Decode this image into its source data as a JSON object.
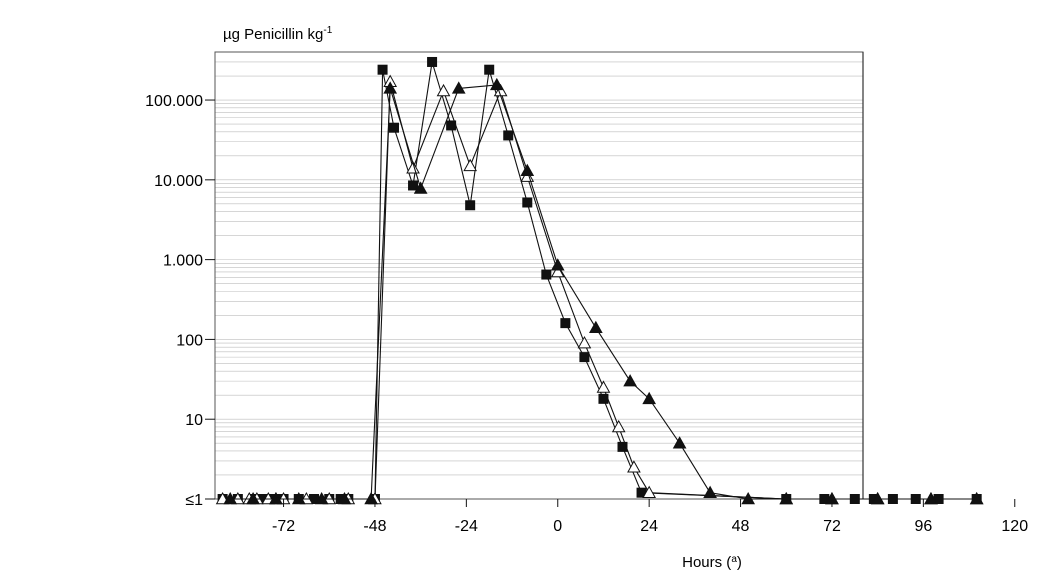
{
  "chart_data": {
    "type": "line",
    "ylabel": "µg Penicillin kg",
    "ylabel_superscript": "-1",
    "xlabel": "Hours (",
    "xlabel_superscript": "a",
    "xlabel_tail": ")",
    "y_scale": "log",
    "ylim": [
      1,
      400000
    ],
    "xlim": [
      -90,
      124
    ],
    "grid": "horizontal",
    "y_ticks": [
      {
        "value": 100000,
        "label": "100.000"
      },
      {
        "value": 10000,
        "label": "10.000"
      },
      {
        "value": 1000,
        "label": "1.000"
      },
      {
        "value": 100,
        "label": "100"
      },
      {
        "value": 10,
        "label": "10"
      },
      {
        "value": 1,
        "label": "≤1"
      }
    ],
    "x_ticks": [
      {
        "value": -72,
        "label": "-72"
      },
      {
        "value": -48,
        "label": "-48"
      },
      {
        "value": -24,
        "label": "-24"
      },
      {
        "value": 0,
        "label": "0"
      },
      {
        "value": 24,
        "label": "24"
      },
      {
        "value": 48,
        "label": "48"
      },
      {
        "value": 72,
        "label": "72"
      },
      {
        "value": 96,
        "label": "96"
      },
      {
        "value": 120,
        "label": "120"
      }
    ],
    "series": [
      {
        "marker": "square-filled",
        "points": [
          {
            "x": -88,
            "y": 1
          },
          {
            "x": -84,
            "y": 1
          },
          {
            "x": -80,
            "y": 1
          },
          {
            "x": -78,
            "y": 1
          },
          {
            "x": -76,
            "y": 1
          },
          {
            "x": -74,
            "y": 1
          },
          {
            "x": -72,
            "y": 1
          },
          {
            "x": -68,
            "y": 1
          },
          {
            "x": -64,
            "y": 1
          },
          {
            "x": -60,
            "y": 1
          },
          {
            "x": -57,
            "y": 1
          },
          {
            "x": -55,
            "y": 1
          },
          {
            "x": -48,
            "y": 1
          },
          {
            "x": -46,
            "y": 240000
          },
          {
            "x": -43,
            "y": 45000
          },
          {
            "x": -38,
            "y": 8500
          },
          {
            "x": -33,
            "y": 300000
          },
          {
            "x": -28,
            "y": 48000
          },
          {
            "x": -23,
            "y": 4800
          },
          {
            "x": -18,
            "y": 240000
          },
          {
            "x": -13,
            "y": 36000
          },
          {
            "x": -8,
            "y": 5200
          },
          {
            "x": -3,
            "y": 650
          },
          {
            "x": 2,
            "y": 160
          },
          {
            "x": 7,
            "y": 60
          },
          {
            "x": 12,
            "y": 18
          },
          {
            "x": 17,
            "y": 4.5
          },
          {
            "x": 22,
            "y": 1.2
          },
          {
            "x": 60,
            "y": 1
          },
          {
            "x": 70,
            "y": 1
          },
          {
            "x": 78,
            "y": 1
          },
          {
            "x": 83,
            "y": 1
          },
          {
            "x": 88,
            "y": 1
          },
          {
            "x": 94,
            "y": 1
          },
          {
            "x": 100,
            "y": 1
          },
          {
            "x": 110,
            "y": 1
          }
        ]
      },
      {
        "marker": "triangle-open",
        "points": [
          {
            "x": -88,
            "y": 1
          },
          {
            "x": -84,
            "y": 1
          },
          {
            "x": -81,
            "y": 1
          },
          {
            "x": -79,
            "y": 1
          },
          {
            "x": -76,
            "y": 1
          },
          {
            "x": -74,
            "y": 1
          },
          {
            "x": -72,
            "y": 1
          },
          {
            "x": -66,
            "y": 1
          },
          {
            "x": -60,
            "y": 1
          },
          {
            "x": -55,
            "y": 1
          },
          {
            "x": -48,
            "y": 1
          },
          {
            "x": -44,
            "y": 170000
          },
          {
            "x": -38,
            "y": 14000
          },
          {
            "x": -30,
            "y": 130000
          },
          {
            "x": -23,
            "y": 15000
          },
          {
            "x": -15,
            "y": 130000
          },
          {
            "x": -8,
            "y": 11000
          },
          {
            "x": 0,
            "y": 700
          },
          {
            "x": 7,
            "y": 90
          },
          {
            "x": 12,
            "y": 25
          },
          {
            "x": 16,
            "y": 8
          },
          {
            "x": 20,
            "y": 2.5
          },
          {
            "x": 24,
            "y": 1.2
          },
          {
            "x": 60,
            "y": 1
          },
          {
            "x": 72,
            "y": 1
          },
          {
            "x": 84,
            "y": 1
          },
          {
            "x": 98,
            "y": 1
          },
          {
            "x": 110,
            "y": 1
          }
        ]
      },
      {
        "marker": "triangle-filled",
        "points": [
          {
            "x": -86,
            "y": 1
          },
          {
            "x": -80,
            "y": 1
          },
          {
            "x": -74,
            "y": 1
          },
          {
            "x": -68,
            "y": 1
          },
          {
            "x": -62,
            "y": 1
          },
          {
            "x": -56,
            "y": 1
          },
          {
            "x": -49,
            "y": 1
          },
          {
            "x": -44,
            "y": 140000
          },
          {
            "x": -36,
            "y": 7800
          },
          {
            "x": -26,
            "y": 140000
          },
          {
            "x": -16,
            "y": 155000
          },
          {
            "x": -8,
            "y": 13000
          },
          {
            "x": 0,
            "y": 850
          },
          {
            "x": 10,
            "y": 140
          },
          {
            "x": 19,
            "y": 30
          },
          {
            "x": 24,
            "y": 18
          },
          {
            "x": 32,
            "y": 5
          },
          {
            "x": 40,
            "y": 1.2
          },
          {
            "x": 50,
            "y": 1
          },
          {
            "x": 60,
            "y": 1
          },
          {
            "x": 72,
            "y": 1
          },
          {
            "x": 84,
            "y": 1
          },
          {
            "x": 98,
            "y": 1
          },
          {
            "x": 110,
            "y": 1
          }
        ]
      }
    ]
  }
}
